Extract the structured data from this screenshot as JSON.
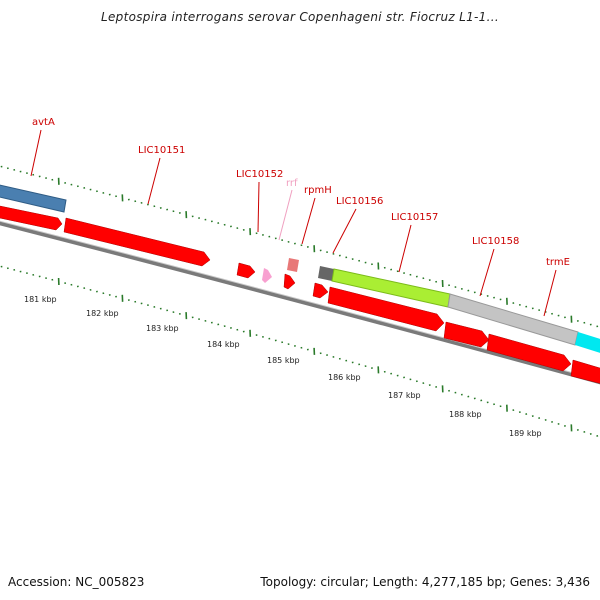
{
  "title": "Leptospira interrogans serovar Copenhageni str. Fiocruz L1-1...",
  "accession_label": "Accession: NC_005823",
  "topology_label": "Topology: circular; Length: 4,277,185 bp; Genes: 3,436",
  "colors": {
    "gene_red": "#ff0000",
    "backbone": "#888888",
    "tick_green": "#2a7a2a",
    "label_red": "#cc0000",
    "label_pink": "#f0a0c0"
  },
  "gene_labels": [
    {
      "name": "avtA",
      "color": "#cc0000"
    },
    {
      "name": "LIC10151",
      "color": "#cc0000"
    },
    {
      "name": "LIC10152",
      "color": "#cc0000"
    },
    {
      "name": "rrf",
      "color": "#f0a0c0"
    },
    {
      "name": "rpmH",
      "color": "#cc0000"
    },
    {
      "name": "LIC10156",
      "color": "#cc0000"
    },
    {
      "name": "LIC10157",
      "color": "#cc0000"
    },
    {
      "name": "LIC10158",
      "color": "#cc0000"
    },
    {
      "name": "trmE",
      "color": "#cc0000"
    }
  ],
  "kbp_labels": [
    "181 kbp",
    "182 kbp",
    "183 kbp",
    "184 kbp",
    "185 kbp",
    "186 kbp",
    "187 kbp",
    "188 kbp",
    "189 kbp"
  ]
}
